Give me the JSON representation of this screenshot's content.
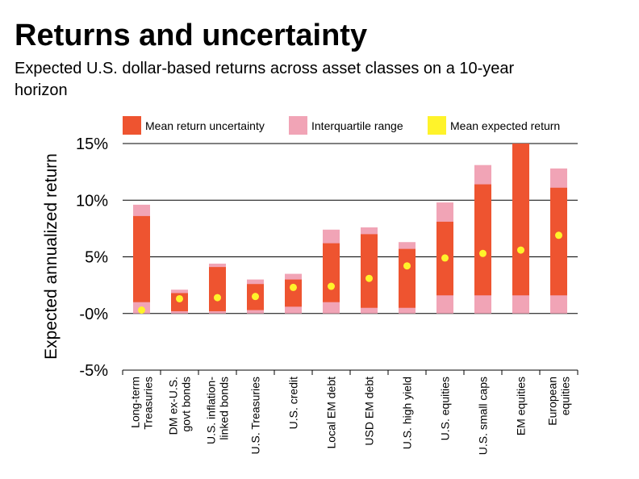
{
  "title": "Returns and uncertainty",
  "subtitle": "Expected U.S. dollar-based returns across asset classes on a 10-year horizon",
  "chart_data": {
    "type": "bar",
    "ylabel": "Expected annualized return",
    "ylim": [
      -5,
      15
    ],
    "yticks": [
      {
        "value": 15,
        "label": "15%"
      },
      {
        "value": 10,
        "label": "10%"
      },
      {
        "value": 5,
        "label": "5%"
      },
      {
        "value": 0,
        "label": "-0%"
      },
      {
        "value": -5,
        "label": "-5%"
      }
    ],
    "grid": true,
    "legend_position": "top",
    "legend": [
      {
        "name": "Mean return uncertainty",
        "color": "#ee5430"
      },
      {
        "name": "Interquartile range",
        "color": "#f1a4b6"
      },
      {
        "name": "Mean expected return",
        "color": "#fff32a"
      }
    ],
    "categories": [
      [
        "Long-term",
        "Treasuries"
      ],
      [
        "DM ex-U.S.",
        "govt bonds"
      ],
      [
        "U.S. inflation-",
        "linked bonds"
      ],
      [
        "U.S. Treasuries"
      ],
      [
        "U.S. credit"
      ],
      [
        "Local  EM debt"
      ],
      [
        "USD EM debt"
      ],
      [
        "U.S. high yield"
      ],
      [
        "U.S. equities"
      ],
      [
        "U.S. small caps"
      ],
      [
        "EM equities"
      ],
      [
        "European",
        "equities"
      ]
    ],
    "interquartile_range": [
      [
        0,
        9.6
      ],
      [
        0,
        2.1
      ],
      [
        0,
        4.4
      ],
      [
        0,
        3.0
      ],
      [
        0,
        3.5
      ],
      [
        0,
        7.4
      ],
      [
        0,
        7.6
      ],
      [
        0,
        6.3
      ],
      [
        0,
        9.8
      ],
      [
        0,
        13.1
      ],
      [
        0,
        15.0
      ],
      [
        0,
        12.8
      ]
    ],
    "mean_return_uncertainty": [
      [
        1.0,
        8.6
      ],
      [
        0.2,
        1.8
      ],
      [
        0.2,
        4.1
      ],
      [
        0.3,
        2.6
      ],
      [
        0.6,
        3.0
      ],
      [
        1.0,
        6.2
      ],
      [
        0.5,
        7.0
      ],
      [
        0.5,
        5.7
      ],
      [
        1.6,
        8.1
      ],
      [
        1.6,
        11.4
      ],
      [
        1.6,
        15.0
      ],
      [
        1.6,
        11.1
      ]
    ],
    "mean_expected_return": [
      0.3,
      1.3,
      1.4,
      1.5,
      2.3,
      2.4,
      3.1,
      4.2,
      4.9,
      5.3,
      5.6,
      6.9
    ]
  }
}
